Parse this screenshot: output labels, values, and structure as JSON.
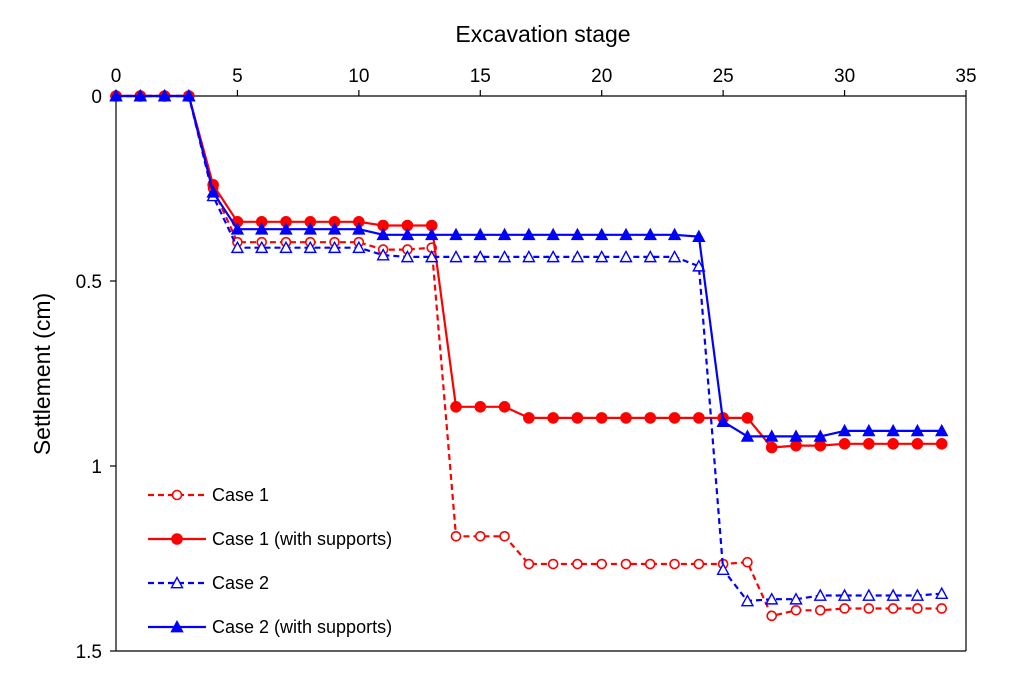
{
  "chart_data": {
    "type": "line",
    "title": "",
    "xlabel": "Excavation stage",
    "ylabel": "Settlement (cm)",
    "xlim": [
      0,
      35
    ],
    "ylim": [
      0,
      1.5
    ],
    "y_inverted": true,
    "x_axis_position": "top",
    "x_ticks": [
      "0",
      "5",
      "10",
      "15",
      "20",
      "25",
      "30",
      "35"
    ],
    "y_ticks": [
      "0",
      "0.5",
      "1",
      "1.5"
    ],
    "legend_position": "bottom-left",
    "series": [
      {
        "name": "Case 1",
        "color": "#ff0000",
        "dash": "dashed",
        "marker": "open-circle",
        "x": [
          0,
          1,
          2,
          3,
          4,
          5,
          6,
          7,
          8,
          9,
          10,
          11,
          12,
          13,
          14,
          15,
          16,
          17,
          18,
          19,
          20,
          21,
          22,
          23,
          24,
          25,
          26,
          27,
          28,
          29,
          30,
          31,
          32,
          33,
          34
        ],
        "y": [
          0,
          0,
          0,
          0,
          0.25,
          0.395,
          0.395,
          0.395,
          0.395,
          0.395,
          0.395,
          0.415,
          0.415,
          0.41,
          1.19,
          1.19,
          1.19,
          1.265,
          1.265,
          1.265,
          1.265,
          1.265,
          1.265,
          1.265,
          1.265,
          1.265,
          1.26,
          1.405,
          1.39,
          1.39,
          1.385,
          1.385,
          1.385,
          1.385,
          1.385
        ]
      },
      {
        "name": "Case 1 (with supports)",
        "color": "#ff0000",
        "dash": "solid",
        "marker": "filled-circle",
        "x": [
          0,
          1,
          2,
          3,
          4,
          5,
          6,
          7,
          8,
          9,
          10,
          11,
          12,
          13,
          14,
          15,
          16,
          17,
          18,
          19,
          20,
          21,
          22,
          23,
          24,
          25,
          26,
          27,
          28,
          29,
          30,
          31,
          32,
          33,
          34
        ],
        "y": [
          0,
          0,
          0,
          0,
          0.24,
          0.34,
          0.34,
          0.34,
          0.34,
          0.34,
          0.34,
          0.35,
          0.35,
          0.35,
          0.84,
          0.84,
          0.84,
          0.87,
          0.87,
          0.87,
          0.87,
          0.87,
          0.87,
          0.87,
          0.87,
          0.87,
          0.87,
          0.95,
          0.945,
          0.945,
          0.94,
          0.94,
          0.94,
          0.94,
          0.94
        ]
      },
      {
        "name": "Case 2",
        "color": "#0000ff",
        "dash": "dashed",
        "marker": "open-triangle",
        "x": [
          0,
          1,
          2,
          3,
          4,
          5,
          6,
          7,
          8,
          9,
          10,
          11,
          12,
          13,
          14,
          15,
          16,
          17,
          18,
          19,
          20,
          21,
          22,
          23,
          24,
          25,
          26,
          27,
          28,
          29,
          30,
          31,
          32,
          33,
          34
        ],
        "y": [
          0,
          0,
          0,
          0,
          0.27,
          0.41,
          0.41,
          0.41,
          0.41,
          0.41,
          0.41,
          0.43,
          0.435,
          0.435,
          0.435,
          0.435,
          0.435,
          0.435,
          0.435,
          0.435,
          0.435,
          0.435,
          0.435,
          0.435,
          0.46,
          1.28,
          1.365,
          1.36,
          1.36,
          1.35,
          1.35,
          1.35,
          1.35,
          1.35,
          1.345
        ]
      },
      {
        "name": "Case 2 (with supports)",
        "color": "#0000ff",
        "dash": "solid",
        "marker": "filled-triangle",
        "x": [
          0,
          1,
          2,
          3,
          4,
          5,
          6,
          7,
          8,
          9,
          10,
          11,
          12,
          13,
          14,
          15,
          16,
          17,
          18,
          19,
          20,
          21,
          22,
          23,
          24,
          25,
          26,
          27,
          28,
          29,
          30,
          31,
          32,
          33,
          34
        ],
        "y": [
          0,
          0,
          0,
          0,
          0.26,
          0.36,
          0.36,
          0.36,
          0.36,
          0.36,
          0.36,
          0.375,
          0.375,
          0.375,
          0.375,
          0.375,
          0.375,
          0.375,
          0.375,
          0.375,
          0.375,
          0.375,
          0.375,
          0.375,
          0.38,
          0.88,
          0.92,
          0.92,
          0.92,
          0.92,
          0.905,
          0.905,
          0.905,
          0.905,
          0.905
        ]
      }
    ]
  }
}
